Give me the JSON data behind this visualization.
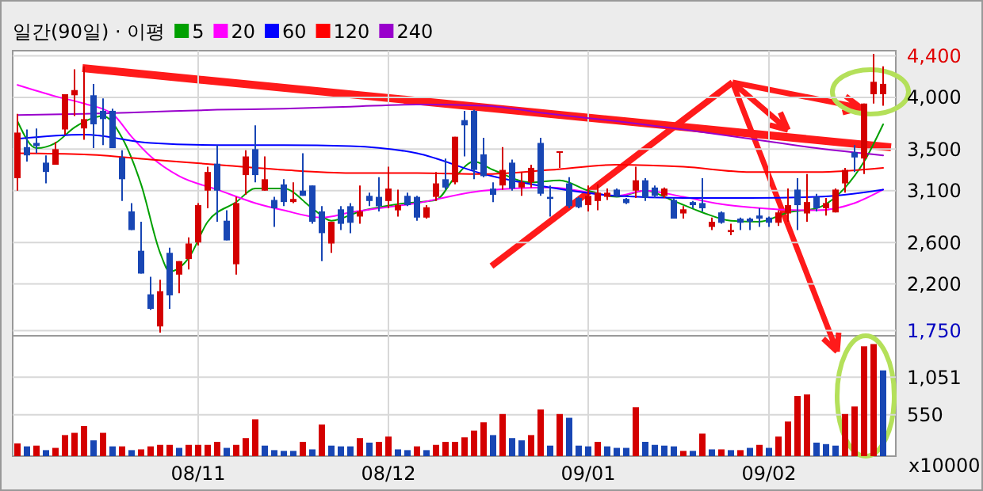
{
  "chart_data": [
    {
      "type": "candlestick",
      "title": "일간(90일) · 이평",
      "legend": "top",
      "grid": true,
      "tick_labels": "y",
      "categories": [
        null,
        null,
        null,
        null,
        null,
        null,
        null,
        null,
        null,
        null,
        null,
        null,
        null,
        null,
        null,
        null,
        null,
        null,
        null,
        null,
        null,
        null,
        null,
        null,
        null,
        null,
        null,
        null,
        null,
        null,
        null,
        null,
        null,
        null,
        null,
        null,
        null,
        null,
        null,
        null,
        null,
        null,
        null,
        null,
        null,
        null,
        null,
        null,
        null,
        null,
        null,
        null,
        null,
        null,
        null,
        null,
        null,
        null,
        null,
        null,
        null,
        null,
        null,
        null,
        null,
        null,
        null,
        null,
        null,
        null,
        null,
        null,
        null,
        null,
        null,
        null,
        null,
        null,
        null,
        null,
        null,
        null,
        null,
        null,
        null,
        null,
        null,
        null,
        null,
        null,
        null,
        null
      ],
      "ylim": [
        1700,
        4450
      ],
      "yticks": [
        {
          "value": 1750,
          "label": "1,750"
        },
        {
          "value": 2200,
          "label": "2,200"
        },
        {
          "value": 2600,
          "label": "2,600"
        },
        {
          "value": 3100,
          "label": "3,100"
        },
        {
          "value": 3500,
          "label": "3,500"
        },
        {
          "value": 4000,
          "label": "4,000"
        },
        {
          "value": 4400,
          "label": "4,400"
        }
      ],
      "ohlc": [
        [
          3220,
          3840,
          3100,
          3660
        ],
        [
          3520,
          3690,
          3380,
          3440
        ],
        [
          3560,
          3700,
          3460,
          3530
        ],
        [
          3370,
          3440,
          3170,
          3280
        ],
        [
          3350,
          3570,
          3350,
          3500
        ],
        [
          3690,
          4030,
          3640,
          4030
        ],
        [
          4020,
          4270,
          3820,
          4070
        ],
        [
          3700,
          4300,
          3590,
          3790
        ],
        [
          4020,
          4130,
          3510,
          3740
        ],
        [
          3870,
          3990,
          3540,
          3790
        ],
        [
          3870,
          3890,
          3510,
          3510
        ],
        [
          3420,
          3490,
          3000,
          3210
        ],
        [
          2900,
          2980,
          2720,
          2720
        ],
        [
          2520,
          2800,
          2300,
          2300
        ],
        [
          2100,
          2270,
          1950,
          1960
        ],
        [
          1790,
          2240,
          1730,
          2130
        ],
        [
          2500,
          2550,
          1960,
          2090
        ],
        [
          2290,
          2420,
          2110,
          2420
        ],
        [
          2440,
          2650,
          2340,
          2590
        ],
        [
          2600,
          2980,
          2570,
          2960
        ],
        [
          3100,
          3330,
          2930,
          3280
        ],
        [
          3360,
          3540,
          2800,
          3100
        ],
        [
          2810,
          2910,
          2620,
          2620
        ],
        [
          2390,
          3040,
          2290,
          2980
        ],
        [
          3250,
          3490,
          3060,
          3430
        ],
        [
          3500,
          3730,
          3180,
          3250
        ],
        [
          3100,
          3430,
          3100,
          3210
        ],
        [
          3010,
          3040,
          2750,
          2930
        ],
        [
          3160,
          3210,
          2950,
          2990
        ],
        [
          2990,
          3180,
          2980,
          3020
        ],
        [
          3100,
          3460,
          3050,
          3050
        ],
        [
          3150,
          3150,
          2780,
          2800
        ],
        [
          2900,
          2950,
          2420,
          2690
        ],
        [
          2590,
          2800,
          2500,
          2800
        ],
        [
          2920,
          2950,
          2720,
          2780
        ],
        [
          2950,
          2980,
          2690,
          2790
        ],
        [
          2850,
          3150,
          2780,
          2900
        ],
        [
          3050,
          3080,
          2950,
          3000
        ],
        [
          3040,
          3230,
          2900,
          2950
        ],
        [
          3000,
          3330,
          2930,
          3120
        ],
        [
          2910,
          3110,
          2850,
          2960
        ],
        [
          3050,
          3080,
          2950,
          2960
        ],
        [
          3040,
          3050,
          2810,
          2840
        ],
        [
          2840,
          2960,
          2830,
          2940
        ],
        [
          3040,
          3280,
          3000,
          3170
        ],
        [
          3210,
          3410,
          3110,
          3130
        ],
        [
          3180,
          3620,
          3160,
          3620
        ],
        [
          3780,
          3870,
          3430,
          3730
        ],
        [
          3870,
          3880,
          3210,
          3300
        ],
        [
          3450,
          3610,
          3230,
          3240
        ],
        [
          3120,
          3180,
          2990,
          3060
        ],
        [
          3150,
          3520,
          3110,
          3300
        ],
        [
          3370,
          3400,
          3100,
          3120
        ],
        [
          3130,
          3280,
          3050,
          3180
        ],
        [
          3180,
          3350,
          3130,
          3320
        ],
        [
          3560,
          3610,
          3050,
          3070
        ],
        [
          3040,
          3150,
          2850,
          3020
        ],
        [
          3470,
          3480,
          3320,
          3480
        ],
        [
          3170,
          3230,
          2930,
          2950
        ],
        [
          3030,
          3040,
          2930,
          2940
        ],
        [
          2960,
          3150,
          2900,
          3050
        ],
        [
          3000,
          3160,
          2910,
          3080
        ],
        [
          3040,
          3120,
          3010,
          3080
        ],
        [
          3110,
          3120,
          3040,
          3050
        ],
        [
          3020,
          3030,
          2970,
          2980
        ],
        [
          3100,
          3330,
          3030,
          3200
        ],
        [
          3200,
          3220,
          3000,
          3030
        ],
        [
          3130,
          3150,
          3030,
          3050
        ],
        [
          3050,
          3130,
          3030,
          3120
        ],
        [
          3010,
          3030,
          2830,
          2830
        ],
        [
          2880,
          2950,
          2830,
          2920
        ],
        [
          2990,
          3000,
          2930,
          2960
        ],
        [
          2980,
          3220,
          2900,
          2930
        ],
        [
          2750,
          2840,
          2720,
          2800
        ],
        [
          2890,
          2900,
          2780,
          2790
        ],
        [
          2700,
          2780,
          2670,
          2720
        ],
        [
          2830,
          2840,
          2720,
          2790
        ],
        [
          2830,
          2840,
          2720,
          2800
        ],
        [
          2860,
          2930,
          2750,
          2830
        ],
        [
          2840,
          2850,
          2750,
          2790
        ],
        [
          2790,
          2910,
          2760,
          2890
        ],
        [
          2880,
          3120,
          2800,
          2960
        ],
        [
          3110,
          3220,
          2720,
          2960
        ],
        [
          2880,
          3260,
          2800,
          2990
        ],
        [
          3040,
          3070,
          2900,
          2930
        ],
        [
          2930,
          3030,
          2860,
          2980
        ],
        [
          2890,
          3120,
          2890,
          3110
        ],
        [
          3170,
          3320,
          3080,
          3300
        ],
        [
          3470,
          3540,
          3280,
          3420
        ],
        [
          3410,
          3940,
          3260,
          3940
        ],
        [
          4030,
          4420,
          3940,
          4150
        ],
        [
          4030,
          4300,
          3920,
          4130
        ]
      ],
      "colors": [
        "#d40000",
        "#1846b4",
        "#1846b4",
        "#1846b4",
        "#d40000",
        "#d40000",
        "#d40000",
        "#d40000",
        "#1846b4",
        "#1846b4",
        "#1846b4",
        "#1846b4",
        "#1846b4",
        "#1846b4",
        "#1846b4",
        "#d40000",
        "#1846b4",
        "#d40000",
        "#d40000",
        "#d40000",
        "#d40000",
        "#1846b4",
        "#1846b4",
        "#d40000",
        "#d40000",
        "#1846b4",
        "#d40000",
        "#1846b4",
        "#1846b4",
        "#d40000",
        "#1846b4",
        "#1846b4",
        "#1846b4",
        "#d40000",
        "#1846b4",
        "#1846b4",
        "#d40000",
        "#1846b4",
        "#1846b4",
        "#d40000",
        "#d40000",
        "#1846b4",
        "#1846b4",
        "#d40000",
        "#d40000",
        "#1846b4",
        "#d40000",
        "#1846b4",
        "#1846b4",
        "#1846b4",
        "#1846b4",
        "#d40000",
        "#1846b4",
        "#d40000",
        "#d40000",
        "#1846b4",
        "#1846b4",
        "#d40000",
        "#1846b4",
        "#1846b4",
        "#d40000",
        "#d40000",
        "#d40000",
        "#1846b4",
        "#1846b4",
        "#d40000",
        "#1846b4",
        "#1846b4",
        "#d40000",
        "#1846b4",
        "#d40000",
        "#1846b4",
        "#1846b4",
        "#d40000",
        "#1846b4",
        "#d40000",
        "#1846b4",
        "#1846b4",
        "#1846b4",
        "#1846b4",
        "#d40000",
        "#d40000",
        "#1846b4",
        "#d40000",
        "#1846b4",
        "#d40000",
        "#d40000",
        "#d40000",
        "#1846b4",
        "#d40000",
        "#d40000",
        "#d40000"
      ],
      "series": [
        {
          "name": "5",
          "type": "line",
          "color": "#00a000",
          "values": [
            3770,
            null,
            3510,
            null,
            3560,
            null,
            3710,
            null,
            null,
            3820,
            null,
            3610,
            null,
            3160,
            null,
            2500,
            2320,
            null,
            2450,
            null,
            2800,
            null,
            null,
            2990,
            null,
            3120,
            null,
            null,
            3120,
            null,
            null,
            2930,
            null,
            2810,
            null,
            null,
            2900,
            null,
            null,
            null,
            2970,
            null,
            null,
            null,
            3010,
            null,
            3230,
            null,
            3380,
            null,
            3300,
            null,
            null,
            null,
            3180,
            null,
            null,
            3200,
            null,
            null,
            3100,
            null,
            null,
            3040,
            null,
            null,
            3100,
            null,
            null,
            3000,
            null,
            null,
            2890,
            null,
            null,
            2810,
            null,
            null,
            2800,
            null,
            null,
            2890,
            null,
            null,
            2930,
            null,
            null,
            3130,
            null,
            3380,
            null,
            3740
          ]
        },
        {
          "name": "20",
          "type": "line",
          "color": "#ff00ff",
          "values": [
            4120,
            null,
            null,
            null,
            4010,
            null,
            null,
            3940,
            null,
            null,
            3840,
            null,
            3620,
            null,
            3430,
            null,
            null,
            3240,
            null,
            null,
            null,
            3110,
            null,
            null,
            null,
            2980,
            null,
            null,
            2910,
            null,
            null,
            null,
            2840,
            null,
            null,
            2890,
            null,
            null,
            null,
            null,
            null,
            null,
            2980,
            null,
            null,
            null,
            null,
            null,
            null,
            3100,
            null,
            null,
            null,
            null,
            null,
            null,
            3130,
            null,
            null,
            null,
            null,
            null,
            null,
            3050,
            null,
            null,
            3100,
            null,
            null,
            null,
            3040,
            null,
            null,
            null,
            2970,
            null,
            null,
            2940,
            null,
            null,
            null,
            null,
            null,
            null,
            2910,
            null,
            null,
            null,
            2980,
            null,
            null,
            3110
          ]
        },
        {
          "name": "60",
          "type": "line",
          "color": "#0000ff",
          "values": [
            3600,
            null,
            null,
            null,
            null,
            null,
            null,
            3640,
            null,
            null,
            null,
            null,
            null,
            null,
            3560,
            null,
            null,
            null,
            null,
            null,
            null,
            3540,
            null,
            null,
            null,
            null,
            null,
            null,
            3540,
            null,
            null,
            null,
            null,
            null,
            null,
            3530,
            null,
            null,
            null,
            null,
            null,
            null,
            3460,
            null,
            null,
            null,
            null,
            null,
            null,
            3260,
            null,
            null,
            null,
            null,
            null,
            null,
            3130,
            null,
            null,
            null,
            null,
            null,
            null,
            3050,
            null,
            null,
            null,
            null,
            null,
            null,
            3030,
            null,
            null,
            null,
            null,
            null,
            null,
            3030,
            null,
            null,
            null,
            null,
            null,
            null,
            3040,
            null,
            null,
            null,
            null,
            null,
            null,
            3110
          ]
        },
        {
          "name": "120",
          "type": "line",
          "color": "#ff0000",
          "values": [
            3460,
            null,
            null,
            null,
            null,
            null,
            null,
            3450,
            null,
            null,
            null,
            null,
            null,
            null,
            3400,
            null,
            null,
            null,
            null,
            null,
            null,
            3350,
            null,
            null,
            null,
            null,
            null,
            null,
            3300,
            null,
            null,
            null,
            null,
            null,
            null,
            3270,
            null,
            null,
            null,
            null,
            null,
            null,
            3270,
            null,
            null,
            null,
            null,
            null,
            null,
            3260,
            null,
            null,
            null,
            null,
            null,
            null,
            3300,
            null,
            null,
            null,
            null,
            null,
            null,
            3350,
            null,
            null,
            null,
            null,
            null,
            null,
            3330,
            null,
            null,
            null,
            null,
            null,
            null,
            3280,
            null,
            null,
            null,
            null,
            null,
            null,
            3280,
            null,
            null,
            null,
            null,
            null,
            null,
            3320
          ]
        },
        {
          "name": "240",
          "type": "line",
          "color": "#9900cc",
          "values": [
            3830,
            null,
            null,
            null,
            null,
            null,
            null,
            3840,
            null,
            null,
            null,
            null,
            null,
            null,
            3860,
            null,
            null,
            null,
            null,
            null,
            null,
            3880,
            null,
            null,
            null,
            null,
            null,
            null,
            3890,
            null,
            null,
            null,
            null,
            null,
            null,
            3910,
            null,
            null,
            null,
            null,
            null,
            null,
            3930,
            null,
            null,
            null,
            null,
            null,
            null,
            3920,
            null,
            null,
            null,
            null,
            null,
            null,
            3840,
            null,
            null,
            null,
            null,
            null,
            null,
            3770,
            null,
            null,
            null,
            null,
            null,
            null,
            3690,
            null,
            null,
            null,
            null,
            null,
            null,
            3600,
            null,
            null,
            null,
            null,
            null,
            null,
            3510,
            null,
            null,
            null,
            null,
            null,
            null,
            3440
          ]
        }
      ]
    },
    {
      "type": "bar",
      "grid": true,
      "annotations": [
        "x10000"
      ],
      "categories": [
        null,
        null,
        null,
        null,
        null,
        null,
        null,
        null,
        null,
        null,
        null,
        null,
        null,
        null,
        null,
        null,
        null,
        null,
        null,
        "08/11",
        null,
        null,
        null,
        null,
        null,
        null,
        null,
        null,
        null,
        null,
        null,
        null,
        null,
        null,
        null,
        null,
        null,
        null,
        null,
        "08/12",
        null,
        null,
        null,
        null,
        null,
        null,
        null,
        null,
        null,
        null,
        null,
        null,
        null,
        null,
        null,
        null,
        null,
        null,
        null,
        null,
        "09/01",
        null,
        null,
        null,
        null,
        null,
        null,
        null,
        null,
        null,
        null,
        null,
        null,
        null,
        null,
        null,
        null,
        null,
        null,
        "09/02",
        null,
        null,
        null,
        null,
        null,
        null,
        null,
        null,
        null,
        null,
        null,
        null
      ],
      "ylim": [
        0,
        1600
      ],
      "yticks": [
        550,
        {
          "value": 1051,
          "label": "1,051"
        }
      ],
      "values": [
        170,
        130,
        140,
        80,
        110,
        280,
        310,
        400,
        210,
        310,
        130,
        130,
        80,
        90,
        130,
        150,
        150,
        110,
        150,
        150,
        150,
        190,
        110,
        150,
        240,
        490,
        140,
        80,
        70,
        70,
        190,
        90,
        420,
        140,
        130,
        130,
        240,
        180,
        190,
        260,
        90,
        80,
        130,
        80,
        150,
        190,
        190,
        250,
        340,
        450,
        280,
        560,
        240,
        210,
        280,
        620,
        140,
        560,
        510,
        140,
        130,
        190,
        130,
        110,
        110,
        650,
        190,
        150,
        140,
        130,
        70,
        70,
        300,
        90,
        90,
        80,
        80,
        110,
        150,
        110,
        260,
        460,
        800,
        820,
        180,
        160,
        140,
        560,
        660,
        1460,
        1490,
        1140
      ],
      "colors": [
        "#d40000",
        "#1846b4",
        "#d40000",
        "#1846b4",
        "#d40000",
        "#d40000",
        "#d40000",
        "#d40000",
        "#1846b4",
        "#d40000",
        "#1846b4",
        "#d40000",
        "#1846b4",
        "#d40000",
        "#d40000",
        "#d40000",
        "#d40000",
        "#1846b4",
        "#d40000",
        "#d40000",
        "#d40000",
        "#d40000",
        "#1846b4",
        "#d40000",
        "#d40000",
        "#d40000",
        "#1846b4",
        "#1846b4",
        "#1846b4",
        "#1846b4",
        "#d40000",
        "#1846b4",
        "#d40000",
        "#1846b4",
        "#1846b4",
        "#1846b4",
        "#d40000",
        "#1846b4",
        "#d40000",
        "#d40000",
        "#1846b4",
        "#1846b4",
        "#d40000",
        "#1846b4",
        "#d40000",
        "#d40000",
        "#d40000",
        "#d40000",
        "#d40000",
        "#d40000",
        "#1846b4",
        "#d40000",
        "#1846b4",
        "#1846b4",
        "#d40000",
        "#d40000",
        "#1846b4",
        "#d40000",
        "#1846b4",
        "#1846b4",
        "#1846b4",
        "#d40000",
        "#1846b4",
        "#1846b4",
        "#1846b4",
        "#d40000",
        "#1846b4",
        "#1846b4",
        "#1846b4",
        "#1846b4",
        "#d40000",
        "#1846b4",
        "#d40000",
        "#1846b4",
        "#d40000",
        "#1846b4",
        "#d40000",
        "#1846b4",
        "#d40000",
        "#1846b4",
        "#d40000",
        "#d40000",
        "#d40000",
        "#d40000",
        "#1846b4",
        "#1846b4",
        "#1846b4",
        "#d40000",
        "#d40000",
        "#d40000",
        "#d40000",
        "#1846b4"
      ]
    }
  ]
}
